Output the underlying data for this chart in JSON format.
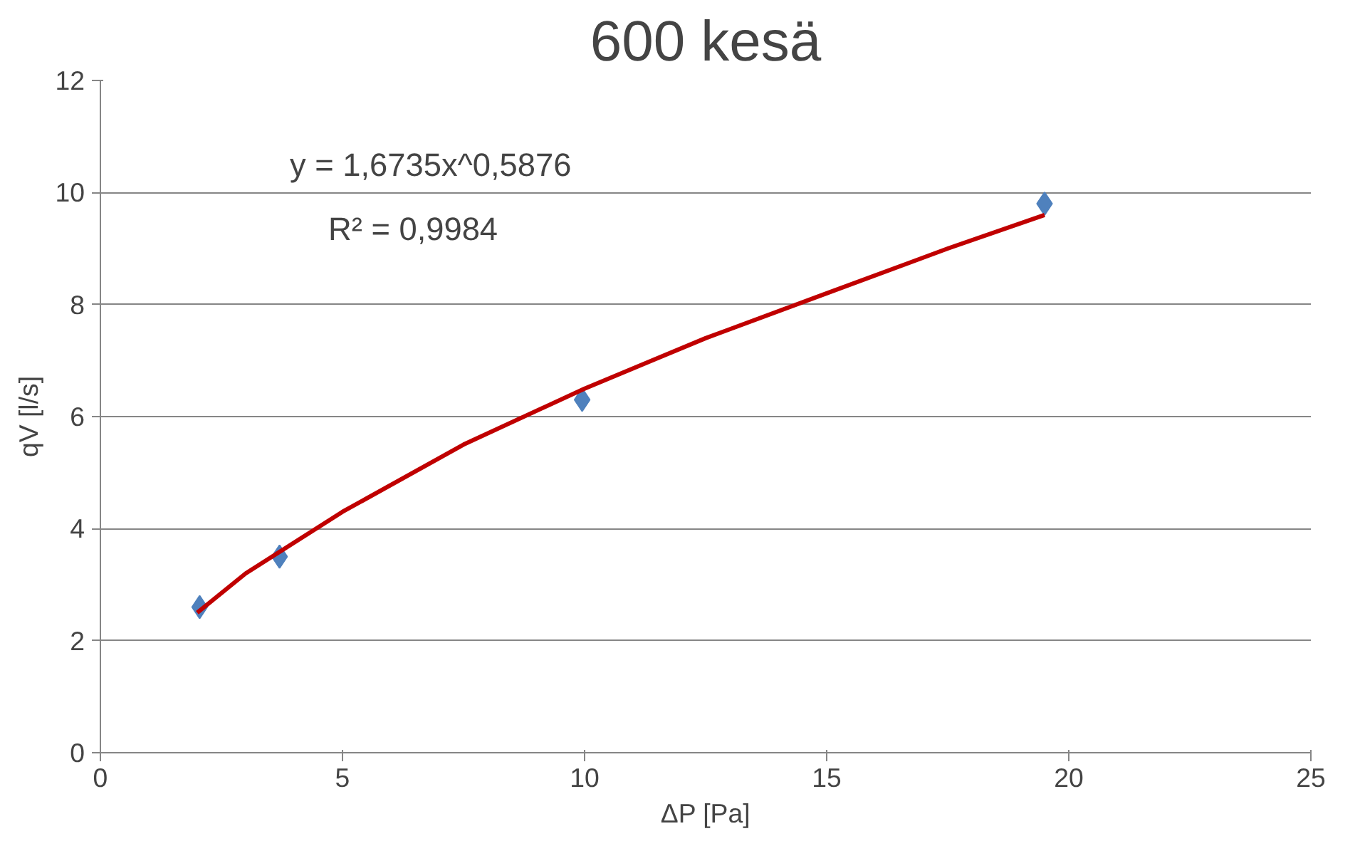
{
  "chart_data": {
    "type": "scatter",
    "title": "600 kesä",
    "xlabel": "ΔP [Pa]",
    "ylabel": "qV [l/s]",
    "xlim": [
      0,
      25
    ],
    "xticks": [
      0,
      5,
      10,
      15,
      20,
      25
    ],
    "ylim": [
      0,
      12
    ],
    "yticks": [
      0,
      2,
      4,
      6,
      8,
      10,
      12
    ],
    "grid": "y",
    "marker": "diamond",
    "series": [
      {
        "color": "#4f81bd",
        "x": [
          2.05,
          3.7,
          9.95,
          19.5
        ],
        "values": [
          2.6,
          3.5,
          6.3,
          9.8
        ]
      },
      {
        "type": "line",
        "color": "#c00000",
        "marker": "none",
        "line_style": "solid",
        "x": [
          2,
          3,
          5,
          7.5,
          10,
          12.5,
          15,
          17.5,
          19.5
        ],
        "values": [
          2.5,
          3.2,
          4.3,
          5.5,
          6.5,
          7.4,
          8.2,
          9.0,
          9.6
        ]
      }
    ],
    "annotations": [
      "y = 1,6735x^0,5876",
      "R² = 0,9984"
    ]
  }
}
